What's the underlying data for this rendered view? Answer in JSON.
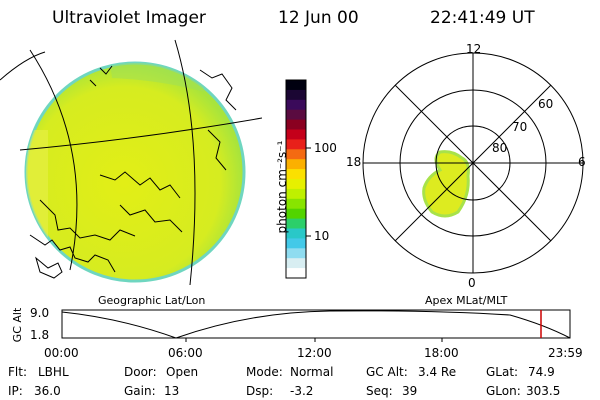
{
  "header": {
    "instrument": "Ultraviolet Imager",
    "date": "12 Jun 00",
    "time": "22:41:49 UT"
  },
  "colorbar": {
    "unit_label": "photon cm⁻²s⁻¹",
    "tick_100": "100",
    "tick_10": "10",
    "colors_top_to_bottom": [
      "#000010",
      "#1b0633",
      "#3a0a5a",
      "#5a0b40",
      "#8a0020",
      "#c4001a",
      "#e8201a",
      "#f46a12",
      "#fbb000",
      "#fbe000",
      "#e6f000",
      "#bff000",
      "#88e400",
      "#52d400",
      "#2ccf6a",
      "#29c8c8",
      "#43c9e8",
      "#8fdcf0",
      "#d8eef2",
      "#ffffff"
    ]
  },
  "left_panel": {
    "caption": "Geographic Lat/Lon",
    "image_fill": "#d9ec1a",
    "edge_fill": "#8ee45a"
  },
  "right_panel": {
    "caption": "Apex MLat/MLT",
    "mlt_labels": {
      "top": "12",
      "left": "18",
      "right": "6",
      "bottom": "0"
    },
    "lat_labels": {
      "lat60": "60",
      "lat70": "70",
      "lat80": "80"
    }
  },
  "timeline": {
    "ylabel": "GC Alt",
    "y_ticks": [
      "9.0",
      "1.8"
    ],
    "x_ticks": [
      "00:00",
      "06:00",
      "12:00",
      "18:00",
      "23:59"
    ],
    "marker_color": "#cc0000"
  },
  "status": {
    "flt_label": "Flt:",
    "flt_value": "LBHL",
    "ip_label": "IP:",
    "ip_value": "36.0",
    "door_label": "Door:",
    "door_value": "Open",
    "gain_label": "Gain:",
    "gain_value": "13",
    "mode_label": "Mode:",
    "mode_value": "Normal",
    "dsp_label": "Dsp:",
    "dsp_value": "-3.2",
    "gcalt_label": "GC Alt:",
    "gcalt_value": "3.4 Re",
    "seq_label": "Seq:",
    "seq_value": "39",
    "glat_label": "GLat:",
    "glat_value": "74.9",
    "glon_label": "GLon:",
    "glon_value": "303.5"
  }
}
